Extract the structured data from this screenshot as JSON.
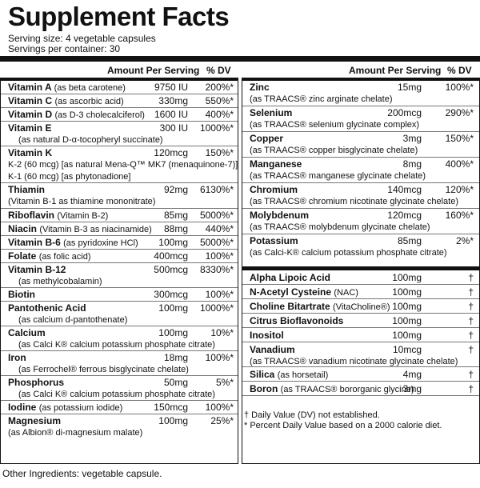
{
  "title": "Supplement Facts",
  "serving_size": "Serving size: 4 vegetable capsules",
  "servings_per_container": "Servings per container: 30",
  "headers": {
    "amount": "Amount Per Serving",
    "dv": "% DV"
  },
  "left": [
    {
      "name": "Vitamin A",
      "q": "(as beta carotene)",
      "amount": "9750 IU",
      "dv": "200%*"
    },
    {
      "name": "Vitamin C",
      "q": "(as ascorbic acid)",
      "amount": "330mg",
      "dv": "550%*"
    },
    {
      "name": "Vitamin D",
      "q": "(as D-3 cholecalciferol)",
      "amount": "1600 IU",
      "dv": "400%*"
    },
    {
      "name": "Vitamin E",
      "q": "",
      "amount": "300 IU",
      "dv": "1000%*",
      "sub": [
        "(as natural D-α-tocopheryl succinate)"
      ]
    },
    {
      "name": "Vitamin K",
      "q": "",
      "amount": "120mcg",
      "dv": "150%*",
      "sub2": [
        "K-2 (60 mcg) [as natural Mena-Q™ MK7 (menaquinone-7)]",
        "K-1 (60 mcg) [as phytonadione]"
      ]
    },
    {
      "name": "Thiamin",
      "q": "",
      "amount": "92mg",
      "dv": "6130%*",
      "sub2": [
        "(Vitamin B-1 as thiamine mononitrate)"
      ]
    },
    {
      "name": "Riboflavin",
      "q": "(Vitamin B-2)",
      "amount": "85mg",
      "dv": "5000%*"
    },
    {
      "name": "Niacin",
      "q": "(Vitamin B-3 as niacinamide)",
      "amount": "88mg",
      "dv": "440%*"
    },
    {
      "name": "Vitamin B-6",
      "q": "(as pyridoxine HCl)",
      "amount": "100mg",
      "dv": "5000%*"
    },
    {
      "name": "Folate",
      "q": "(as folic acid)",
      "amount": "400mcg",
      "dv": "100%*"
    },
    {
      "name": "Vitamin B-12",
      "q": "",
      "amount": "500mcg",
      "dv": "8330%*",
      "sub": [
        "(as methylcobalamin)"
      ]
    },
    {
      "name": "Biotin",
      "q": "",
      "amount": "300mcg",
      "dv": "100%*"
    },
    {
      "name": "Pantothenic Acid",
      "q": "",
      "amount": "100mg",
      "dv": "1000%*",
      "sub": [
        "(as calcium d-pantothenate)"
      ]
    },
    {
      "name": "Calcium",
      "q": "",
      "amount": "100mg",
      "dv": "10%*",
      "sub": [
        "(as Calci K® calcium potassium phosphate citrate)"
      ]
    },
    {
      "name": "Iron",
      "q": "",
      "amount": "18mg",
      "dv": "100%*",
      "sub": [
        "(as Ferrochel® ferrous bisglycinate chelate)"
      ]
    },
    {
      "name": "Phosphorus",
      "q": "",
      "amount": "50mg",
      "dv": "5%*",
      "sub": [
        "(as Calci K® calcium potassium phosphate citrate)"
      ]
    },
    {
      "name": "Iodine",
      "q": "(as potassium iodide)",
      "amount": "150mcg",
      "dv": "100%*"
    },
    {
      "name": "Magnesium",
      "q": "",
      "amount": "100mg",
      "dv": "25%*",
      "sub2": [
        "(as Albion® di-magnesium malate)"
      ]
    }
  ],
  "right_top": [
    {
      "name": "Zinc",
      "q": "",
      "amount": "15mg",
      "dv": "100%*",
      "sub2": [
        "(as TRAACS® zinc arginate chelate)"
      ]
    },
    {
      "name": "Selenium",
      "q": "",
      "amount": "200mcg",
      "dv": "290%*",
      "sub2": [
        "(as TRAACS® selenium glycinate complex)"
      ]
    },
    {
      "name": "Copper",
      "q": "",
      "amount": "3mg",
      "dv": "150%*",
      "sub2": [
        "(as TRAACS® copper bisglycinate chelate)"
      ]
    },
    {
      "name": "Manganese",
      "q": "",
      "amount": "8mg",
      "dv": "400%*",
      "sub2": [
        "(as TRAACS® manganese glycinate chelate)"
      ]
    },
    {
      "name": "Chromium",
      "q": "",
      "amount": "140mcg",
      "dv": "120%*",
      "sub2": [
        "(as TRAACS® chromium nicotinate glycinate chelate)"
      ]
    },
    {
      "name": "Molybdenum",
      "q": "",
      "amount": "120mcg",
      "dv": "160%*",
      "sub2": [
        "(as TRAACS® molybdenum glycinate chelate)"
      ]
    },
    {
      "name": "Potassium",
      "q": "",
      "amount": "85mg",
      "dv": "2%*",
      "sub2": [
        "(as Calci-K® calcium potassium phosphate citrate)"
      ]
    }
  ],
  "right_bottom": [
    {
      "name": "Alpha Lipoic Acid",
      "q": "",
      "amount": "100mg",
      "dv": "†"
    },
    {
      "name": "N-Acetyl Cysteine",
      "q": "(NAC)",
      "amount": "100mg",
      "dv": "†"
    },
    {
      "name": "Choline Bitartrate",
      "q": "(VitaCholine®)",
      "amount": "100mg",
      "dv": "†"
    },
    {
      "name": "Citrus Bioflavonoids",
      "q": "",
      "amount": "100mg",
      "dv": "†"
    },
    {
      "name": "Inositol",
      "q": "",
      "amount": "100mg",
      "dv": "†"
    },
    {
      "name": "Vanadium",
      "q": "",
      "amount": "10mcg",
      "dv": "†",
      "sub2": [
        "(as TRAACS® vanadium nicotinate glycinate chelate)"
      ]
    },
    {
      "name": "Silica",
      "q": "(as horsetail)",
      "amount": "4mg",
      "dv": "†"
    },
    {
      "name": "Boron",
      "q": "(as TRAACS® bororganic glycine)",
      "amount": "3mg",
      "dv": "†"
    }
  ],
  "footnotes": [
    "† Daily Value (DV) not established.",
    "* Percent Daily Value based on a 2000 calorie diet."
  ],
  "other_ingredients": "Other Ingredients: vegetable capsule."
}
